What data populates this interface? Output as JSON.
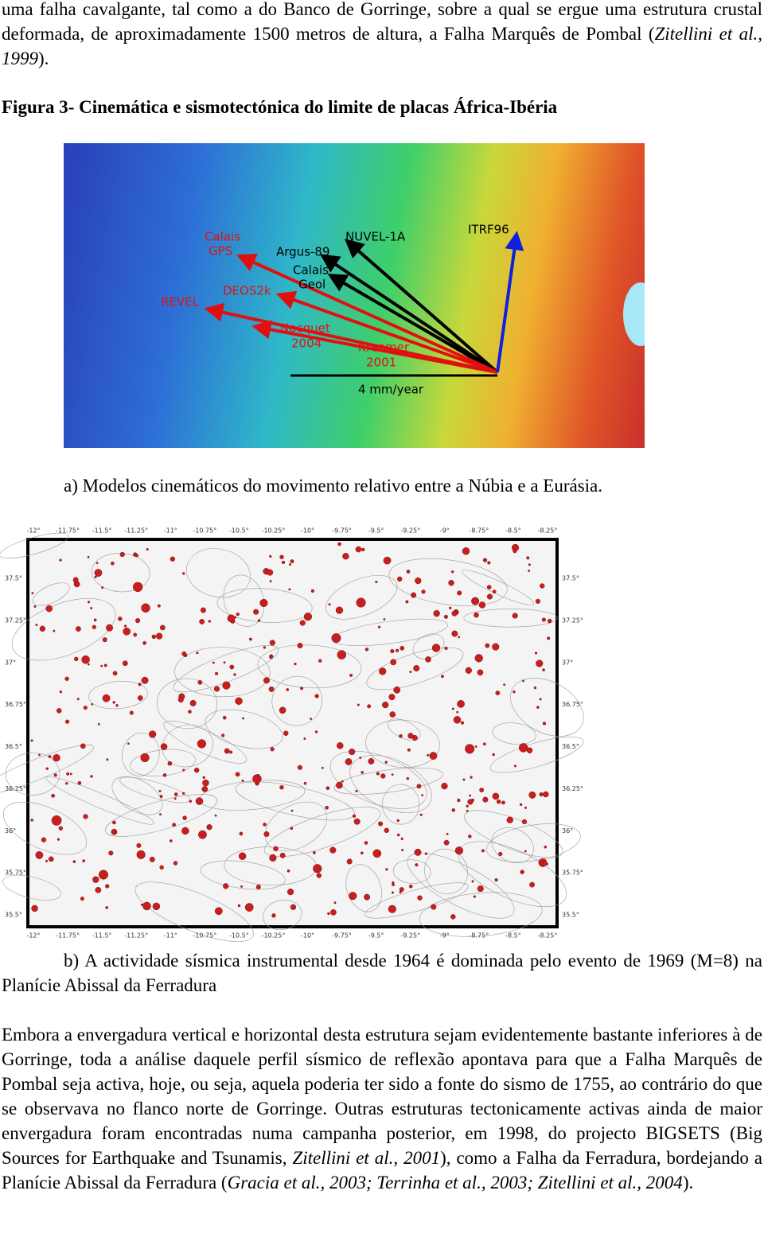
{
  "paragraph_1": [
    {
      "text": "uma falha cavalgante, tal como a do Banco de Gorringe, sobre a qual se ergue uma estrutura crustal deformada, de aproximadamente 1500 metros de altura, a Falha Marquês de Pombal (",
      "italic": false
    },
    {
      "text": "Zitellini et al., 1999",
      "italic": true
    },
    {
      "text": ").",
      "italic": false
    }
  ],
  "figure_title": "Figura 3- Cinemática e sismotectónica do limite de placas África-Ibéria",
  "figure_a": {
    "labels": {
      "calais_gps_1": "Calais",
      "calais_gps_2": "GPS",
      "argus": "Argus-89",
      "nuvel": "NUVEL-1A",
      "itrf": "ITRF96",
      "calais_geol_1": "Calais",
      "calais_geol_2": "Geol",
      "deos": "DEOS2k",
      "revel": "REVEL",
      "nocquet_1": "Nocquet",
      "nocquet_2": "2004",
      "kreemer_1": "Kreemer",
      "kreemer_2": "2001",
      "scale": "4 mm/year"
    },
    "caption": "a) Modelos cinemáticos do movimento relativo entre a Núbia e a Eurásia."
  },
  "figure_b": {
    "lon_labels": [
      "-12°",
      "-11.75°",
      "-11.5°",
      "-11.25°",
      "-11°",
      "-10.75°",
      "-10.5°",
      "-10.25°",
      "-10°",
      "-9.75°",
      "-9.5°",
      "-9.25°",
      "-9°",
      "-8.75°",
      "-8.5°",
      "-8.25°"
    ],
    "lat_labels": [
      "37.5°",
      "37.25°",
      "37°",
      "36.75°",
      "36.5°",
      "36.25°",
      "36°",
      "35.75°",
      "35.5°"
    ],
    "caption": "b) A actividade sísmica instrumental desde 1964 é dominada pelo evento de 1969 (M=8) na Planície Abissal da Ferradura"
  },
  "paragraph_2": [
    {
      "text": "Embora a envergadura vertical e horizontal desta estrutura sejam evidentemente bastante inferiores à de Gorringe, toda a análise daquele perfil sísmico de reflexão apontava para que a Falha Marquês de Pombal seja activa, hoje, ou seja, aquela poderia ter sido a fonte do sismo de 1755, ao contrário do que se observava no flanco norte de Gorringe. Outras estruturas tectonicamente activas ainda de maior envergadura foram encontradas numa campanha posterior, em 1998, do projecto BIGSETS (Big Sources for Earthquake and Tsunamis, ",
      "italic": false
    },
    {
      "text": "Zitellini et al., 2001",
      "italic": true
    },
    {
      "text": "), como a Falha da Ferradura, bordejando a Planície Abissal da Ferradura (",
      "italic": false
    },
    {
      "text": "Gracia et al., 2003; Terrinha et al., 2003; Zitellini et al., 2004",
      "italic": true
    },
    {
      "text": ").",
      "italic": false
    }
  ]
}
